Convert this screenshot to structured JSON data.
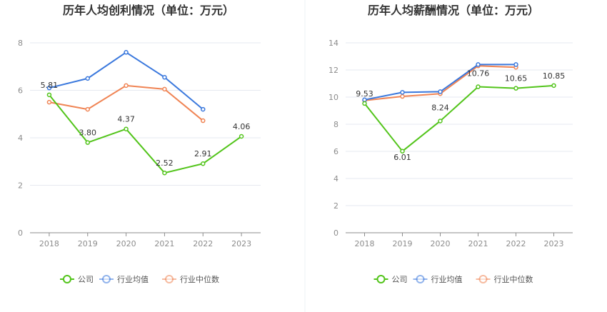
{
  "legend": {
    "company": "公司",
    "industry_avg": "行业均值",
    "industry_median": "行业中位数"
  },
  "colors": {
    "company": "#52c41a",
    "industry_avg": "#3a78dd",
    "industry_median": "#f08454",
    "grid": "#e6e9f0",
    "axis": "#8c8c8c"
  },
  "chart_data": [
    {
      "type": "line",
      "title": "历年人均创利情况（单位：万元）",
      "xlabel": "",
      "ylabel": "",
      "categories": [
        "2018",
        "2019",
        "2020",
        "2021",
        "2022",
        "2023"
      ],
      "ylim": [
        0,
        8
      ],
      "yticks": [
        0,
        2,
        4,
        6,
        8
      ],
      "series": [
        {
          "key": "company",
          "name": "公司",
          "values": [
            5.81,
            3.8,
            4.37,
            2.52,
            2.91,
            4.06
          ],
          "labels": [
            "5.81",
            "3.80",
            "4.37",
            "2.52",
            "2.91",
            "4.06"
          ]
        },
        {
          "key": "industry_avg",
          "name": "行业均值",
          "values": [
            6.1,
            6.5,
            7.6,
            6.55,
            5.2,
            null
          ]
        },
        {
          "key": "industry_median",
          "name": "行业中位数",
          "values": [
            5.5,
            5.2,
            6.2,
            6.05,
            4.72,
            null
          ]
        }
      ]
    },
    {
      "type": "line",
      "title": "历年人均薪酬情况（单位：万元）",
      "xlabel": "",
      "ylabel": "",
      "categories": [
        "2018",
        "2019",
        "2020",
        "2021",
        "2022",
        "2023"
      ],
      "ylim": [
        0,
        14
      ],
      "yticks": [
        0,
        2,
        4,
        6,
        8,
        10,
        12,
        14
      ],
      "series": [
        {
          "key": "company",
          "name": "公司",
          "values": [
            9.53,
            6.01,
            8.24,
            10.76,
            10.65,
            10.85
          ],
          "labels": [
            "9.53",
            "6.01",
            "8.24",
            "10.76",
            "10.65",
            "10.85"
          ]
        },
        {
          "key": "industry_avg",
          "name": "行业均值",
          "values": [
            9.8,
            10.35,
            10.4,
            12.4,
            12.4,
            null
          ]
        },
        {
          "key": "industry_median",
          "name": "行业中位数",
          "values": [
            9.75,
            10.05,
            10.25,
            12.3,
            12.2,
            null
          ]
        }
      ]
    }
  ]
}
